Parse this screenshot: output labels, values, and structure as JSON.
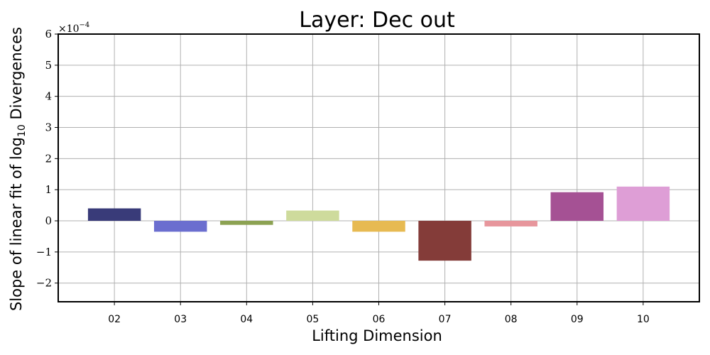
{
  "chart_data": {
    "type": "bar",
    "title": "Layer: Dec out",
    "xlabel": "Lifting Dimension",
    "ylabel": "Slope of linear fit of log",
    "ylabel_sub": "10",
    "ylabel_suffix": " Divergences",
    "y_offset_base": "×10",
    "y_offset_exponent": "−4",
    "categories": [
      "02",
      "03",
      "04",
      "05",
      "06",
      "07",
      "08",
      "09",
      "10"
    ],
    "values": [
      0.4,
      -0.35,
      -0.13,
      0.33,
      -0.35,
      -1.28,
      -0.18,
      0.92,
      1.1
    ],
    "colors": [
      "#393b79",
      "#6b6ecf",
      "#8ca252",
      "#cedb9c",
      "#e7ba52",
      "#843c39",
      "#e7969c",
      "#a55194",
      "#de9ed6"
    ],
    "yticks": [
      -2,
      -1,
      0,
      1,
      2,
      3,
      4,
      5,
      6
    ],
    "ytick_labels": [
      "−2",
      "−1",
      "0",
      "1",
      "2",
      "3",
      "4",
      "5",
      "6"
    ],
    "ylim": [
      -2.6,
      6.0
    ],
    "grid": true,
    "legend": "none"
  }
}
